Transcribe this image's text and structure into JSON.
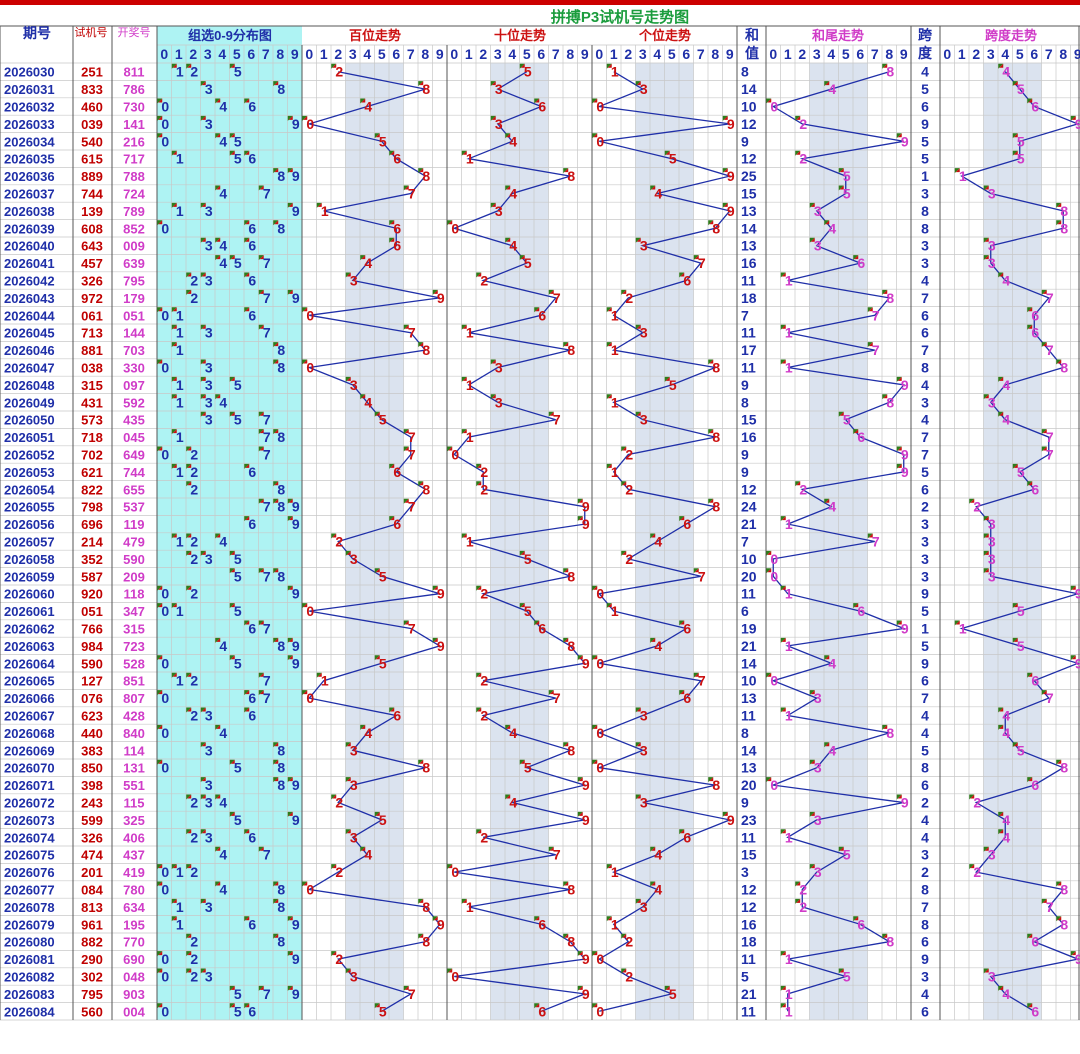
{
  "title": "拼搏P3试机号走势图",
  "headers": {
    "period": "期号",
    "test": "试机号",
    "draw": "开奖号",
    "dist": "组选0-9分布图",
    "hund": "百位走势",
    "ten": "十位走势",
    "unit": "个位走势",
    "sum1": "和",
    "sum2": "值",
    "tail": "和尾走势",
    "span1": "跨",
    "span2": "度",
    "spantrend": "跨度走势"
  },
  "digits": [
    "0",
    "1",
    "2",
    "3",
    "4",
    "5",
    "6",
    "7",
    "8",
    "9"
  ],
  "colors": {
    "title_bar": "#cc0000",
    "title_text": "#1a9c3c",
    "header_text": "#1f2fa8",
    "grid": "#c8c8c8",
    "group_line": "#555555",
    "dist_bg": "#aef3f3",
    "band_bg": "#dbe3ef",
    "period_text": "#1f2fa8",
    "test_text": "#c00000",
    "draw_text": "#d03cc8",
    "dist_text": "#1f2fa8",
    "pos_text": "#cc1111",
    "sum_text": "#1f2fa8",
    "tail_text": "#d03cc8",
    "span_text": "#1f2fa8",
    "spantrend_text": "#d03cc8",
    "line": "#1f2fa8",
    "marker_green": "#2e7d1a",
    "marker_red": "#cc1111"
  },
  "chart_data": {
    "type": "table",
    "columns": [
      "期号",
      "试机号",
      "开奖号",
      "组选0-9分布图",
      "百位走势",
      "十位走势",
      "个位走势",
      "和值",
      "和尾走势",
      "跨度",
      "跨度走势"
    ],
    "rows": [
      {
        "period": "2026030",
        "test": "251",
        "draw": "811",
        "sum": "8",
        "span": "4"
      },
      {
        "period": "2026031",
        "test": "833",
        "draw": "786",
        "sum": "14",
        "span": "5"
      },
      {
        "period": "2026032",
        "test": "460",
        "draw": "730",
        "sum": "10",
        "span": "6"
      },
      {
        "period": "2026033",
        "test": "039",
        "draw": "141",
        "sum": "12",
        "span": "9"
      },
      {
        "period": "2026034",
        "test": "540",
        "draw": "216",
        "sum": "9",
        "span": "5"
      },
      {
        "period": "2026035",
        "test": "615",
        "draw": "717",
        "sum": "12",
        "span": "5"
      },
      {
        "period": "2026036",
        "test": "889",
        "draw": "788",
        "sum": "25",
        "span": "1"
      },
      {
        "period": "2026037",
        "test": "744",
        "draw": "724",
        "sum": "15",
        "span": "3"
      },
      {
        "period": "2026038",
        "test": "139",
        "draw": "789",
        "sum": "13",
        "span": "8"
      },
      {
        "period": "2026039",
        "test": "608",
        "draw": "852",
        "sum": "14",
        "span": "8"
      },
      {
        "period": "2026040",
        "test": "643",
        "draw": "009",
        "sum": "13",
        "span": "3"
      },
      {
        "period": "2026041",
        "test": "457",
        "draw": "639",
        "sum": "16",
        "span": "3"
      },
      {
        "period": "2026042",
        "test": "326",
        "draw": "795",
        "sum": "11",
        "span": "4"
      },
      {
        "period": "2026043",
        "test": "972",
        "draw": "179",
        "sum": "18",
        "span": "7"
      },
      {
        "period": "2026044",
        "test": "061",
        "draw": "051",
        "sum": "7",
        "span": "6"
      },
      {
        "period": "2026045",
        "test": "713",
        "draw": "144",
        "sum": "11",
        "span": "6"
      },
      {
        "period": "2026046",
        "test": "881",
        "draw": "703",
        "sum": "17",
        "span": "7"
      },
      {
        "period": "2026047",
        "test": "038",
        "draw": "330",
        "sum": "11",
        "span": "8"
      },
      {
        "period": "2026048",
        "test": "315",
        "draw": "097",
        "sum": "9",
        "span": "4"
      },
      {
        "period": "2026049",
        "test": "431",
        "draw": "592",
        "sum": "8",
        "span": "3"
      },
      {
        "period": "2026050",
        "test": "573",
        "draw": "435",
        "sum": "15",
        "span": "4"
      },
      {
        "period": "2026051",
        "test": "718",
        "draw": "045",
        "sum": "16",
        "span": "7"
      },
      {
        "period": "2026052",
        "test": "702",
        "draw": "649",
        "sum": "9",
        "span": "7"
      },
      {
        "period": "2026053",
        "test": "621",
        "draw": "744",
        "sum": "9",
        "span": "5"
      },
      {
        "period": "2026054",
        "test": "822",
        "draw": "655",
        "sum": "12",
        "span": "6"
      },
      {
        "period": "2026055",
        "test": "798",
        "draw": "537",
        "sum": "24",
        "span": "2"
      },
      {
        "period": "2026056",
        "test": "696",
        "draw": "119",
        "sum": "21",
        "span": "3"
      },
      {
        "period": "2026057",
        "test": "214",
        "draw": "479",
        "sum": "7",
        "span": "3"
      },
      {
        "period": "2026058",
        "test": "352",
        "draw": "590",
        "sum": "10",
        "span": "3"
      },
      {
        "period": "2026059",
        "test": "587",
        "draw": "209",
        "sum": "20",
        "span": "3"
      },
      {
        "period": "2026060",
        "test": "920",
        "draw": "118",
        "sum": "11",
        "span": "9"
      },
      {
        "period": "2026061",
        "test": "051",
        "draw": "347",
        "sum": "6",
        "span": "5"
      },
      {
        "period": "2026062",
        "test": "766",
        "draw": "315",
        "sum": "19",
        "span": "1"
      },
      {
        "period": "2026063",
        "test": "984",
        "draw": "723",
        "sum": "21",
        "span": "5"
      },
      {
        "period": "2026064",
        "test": "590",
        "draw": "528",
        "sum": "14",
        "span": "9"
      },
      {
        "period": "2026065",
        "test": "127",
        "draw": "851",
        "sum": "10",
        "span": "6"
      },
      {
        "period": "2026066",
        "test": "076",
        "draw": "807",
        "sum": "13",
        "span": "7"
      },
      {
        "period": "2026067",
        "test": "623",
        "draw": "428",
        "sum": "11",
        "span": "4"
      },
      {
        "period": "2026068",
        "test": "440",
        "draw": "840",
        "sum": "8",
        "span": "4"
      },
      {
        "period": "2026069",
        "test": "383",
        "draw": "114",
        "sum": "14",
        "span": "5"
      },
      {
        "period": "2026070",
        "test": "850",
        "draw": "131",
        "sum": "13",
        "span": "8"
      },
      {
        "period": "2026071",
        "test": "398",
        "draw": "551",
        "sum": "20",
        "span": "6"
      },
      {
        "period": "2026072",
        "test": "243",
        "draw": "115",
        "sum": "9",
        "span": "2"
      },
      {
        "period": "2026073",
        "test": "599",
        "draw": "325",
        "sum": "23",
        "span": "4"
      },
      {
        "period": "2026074",
        "test": "326",
        "draw": "406",
        "sum": "11",
        "span": "4"
      },
      {
        "period": "2026075",
        "test": "474",
        "draw": "437",
        "sum": "15",
        "span": "3"
      },
      {
        "period": "2026076",
        "test": "201",
        "draw": "419",
        "sum": "3",
        "span": "2"
      },
      {
        "period": "2026077",
        "test": "084",
        "draw": "780",
        "sum": "12",
        "span": "8"
      },
      {
        "period": "2026078",
        "test": "813",
        "draw": "634",
        "sum": "12",
        "span": "7"
      },
      {
        "period": "2026079",
        "test": "961",
        "draw": "195",
        "sum": "16",
        "span": "8"
      },
      {
        "period": "2026080",
        "test": "882",
        "draw": "770",
        "sum": "18",
        "span": "6"
      },
      {
        "period": "2026081",
        "test": "290",
        "draw": "690",
        "sum": "11",
        "span": "9"
      },
      {
        "period": "2026082",
        "test": "302",
        "draw": "048",
        "sum": "5",
        "span": "3"
      },
      {
        "period": "2026083",
        "test": "795",
        "draw": "903",
        "sum": "21",
        "span": "4"
      },
      {
        "period": "2026084",
        "test": "560",
        "draw": "004",
        "sum": "11",
        "span": "6"
      }
    ]
  }
}
